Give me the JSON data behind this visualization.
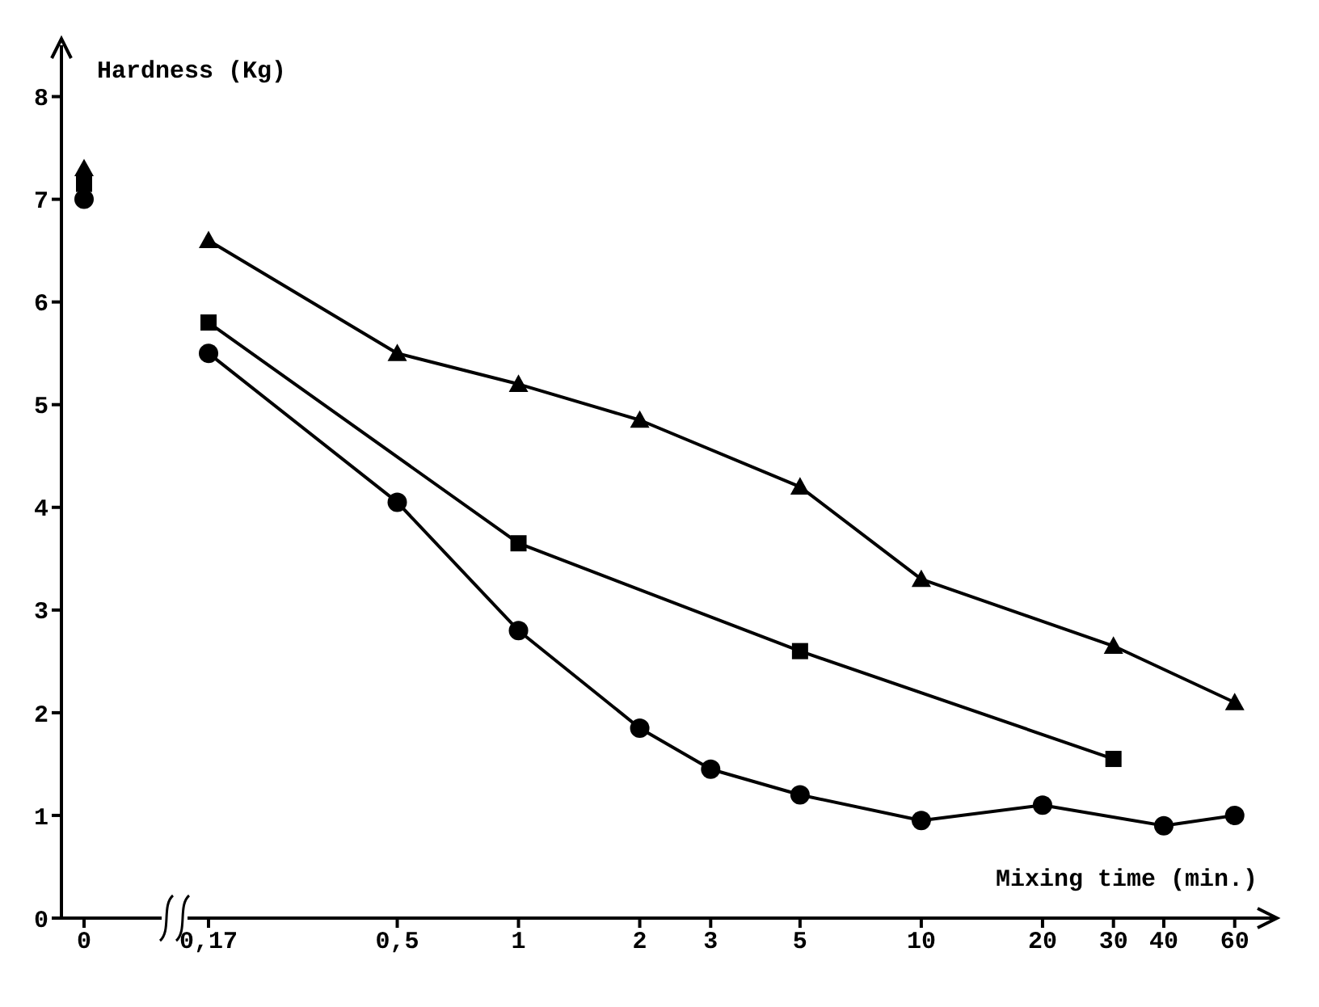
{
  "chart_data": [
    {
      "type": "line",
      "ylabel": "Hardness (Kg)",
      "categories": [
        "0"
      ],
      "ylim": [
        0,
        8.5
      ],
      "yticks": [
        0,
        1,
        2,
        3,
        4,
        5,
        6,
        7,
        8
      ],
      "line_style": "solid",
      "series": [
        {
          "color": "#000000",
          "marker": "triangle",
          "values": [
            7.3
          ]
        },
        {
          "color": "#000000",
          "marker": "square",
          "values": [
            7.15
          ]
        },
        {
          "color": "#000000",
          "marker": "circle",
          "values": [
            7.0
          ]
        }
      ]
    },
    {
      "type": "line",
      "xlabel": "Mixing time (min.)",
      "log": "x",
      "xlim": [
        0.14,
        75
      ],
      "xticks": [
        {
          "value": 0.17,
          "label": "0,17"
        },
        {
          "value": 0.5,
          "label": "0,5"
        },
        1,
        2,
        3,
        5,
        10,
        20,
        30,
        40,
        60
      ],
      "ylim": [
        0,
        8
      ],
      "yticks": [
        0,
        1,
        2,
        3,
        4,
        5,
        6,
        7,
        8
      ],
      "tick_labels": "x",
      "line_style": "solid",
      "series": [
        {
          "color": "#000000",
          "marker": "triangle",
          "x": [
            0.17,
            0.5,
            1,
            2,
            5,
            10,
            30,
            60
          ],
          "values": [
            6.6,
            5.5,
            5.2,
            4.85,
            4.2,
            3.3,
            2.65,
            2.1
          ]
        },
        {
          "color": "#000000",
          "marker": "square",
          "x": [
            0.17,
            1,
            5,
            30
          ],
          "values": [
            5.8,
            3.65,
            2.6,
            1.55
          ]
        },
        {
          "color": "#000000",
          "marker": "circle",
          "x": [
            0.17,
            0.5,
            1,
            2,
            3,
            5,
            10,
            20,
            40,
            60
          ],
          "values": [
            5.5,
            4.05,
            2.8,
            1.85,
            1.45,
            1.2,
            0.95,
            1.1,
            0.9,
            1.0
          ]
        }
      ]
    }
  ]
}
